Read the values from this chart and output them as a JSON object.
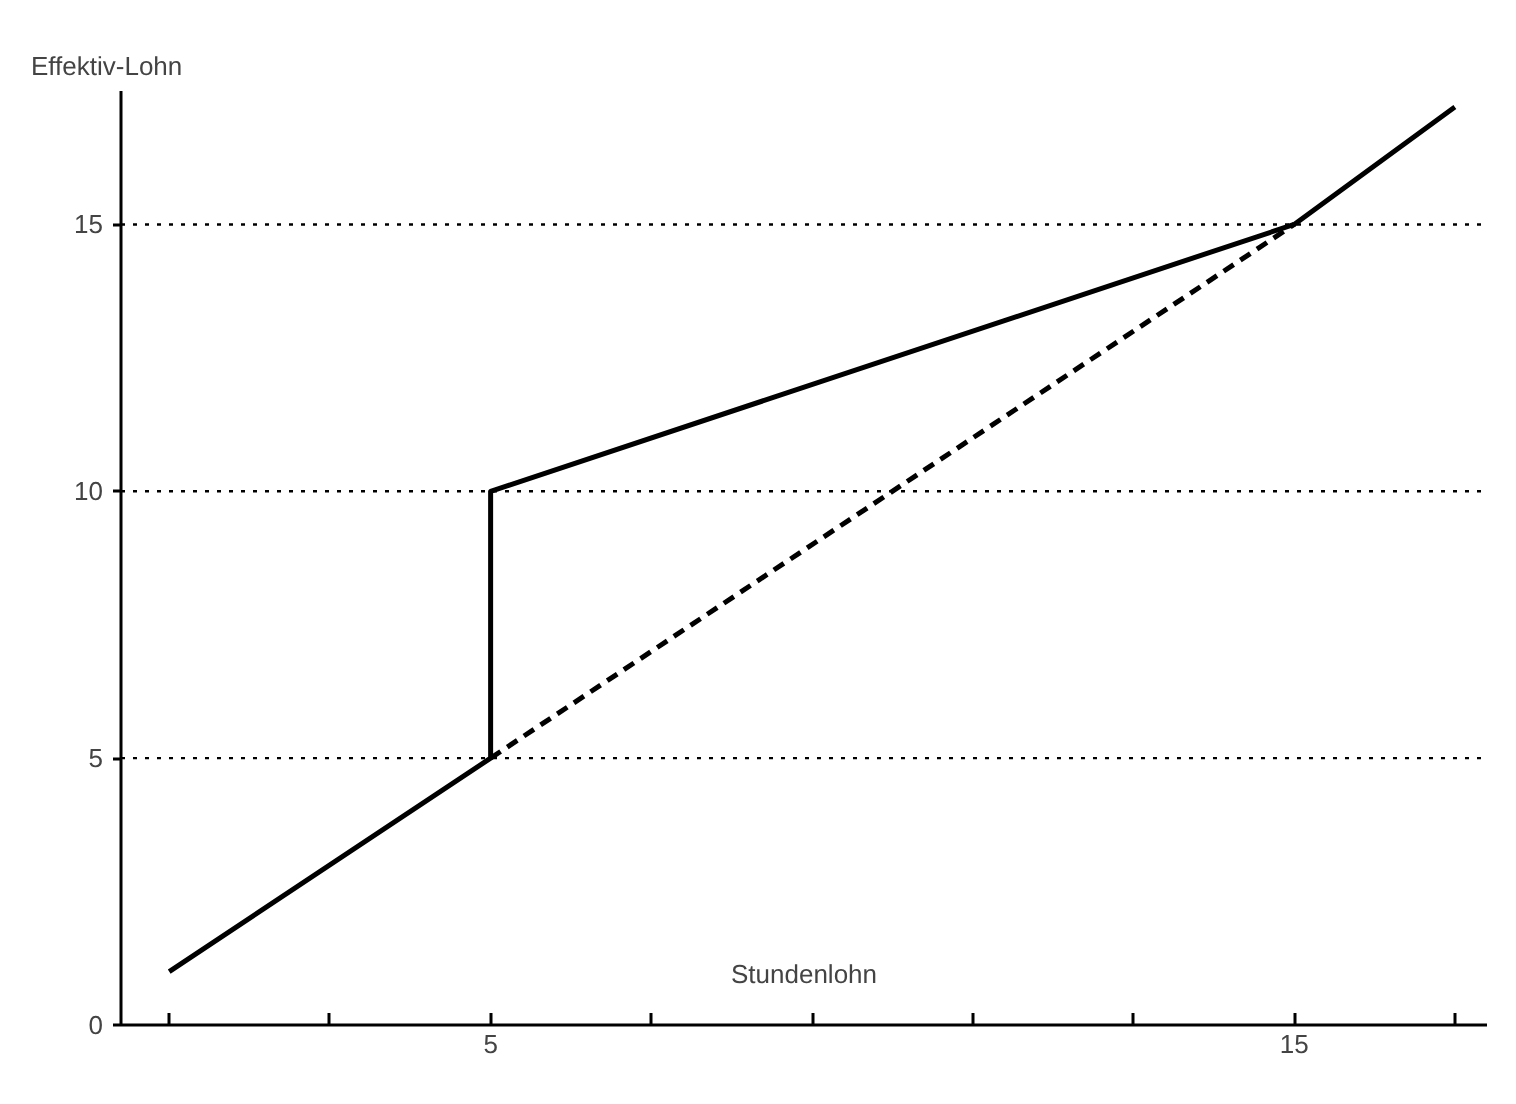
{
  "chart_data": {
    "type": "line",
    "xlabel": "Stundenlohn",
    "ylabel": "Effektiv-Lohn",
    "series": [
      {
        "color": "#000000",
        "x": [
          1,
          5,
          5,
          15,
          17
        ],
        "values": [
          1,
          5,
          10,
          15,
          17.2
        ],
        "line_style": "solid"
      },
      {
        "color": "#000000",
        "x": [
          5,
          15
        ],
        "values": [
          5,
          15
        ],
        "line_style": "dashed"
      }
    ],
    "xlim": [
      0.4,
      17.4
    ],
    "ylim": [
      0,
      17.5
    ],
    "xticks": [
      {
        "value": 1,
        "label": null
      },
      {
        "value": 3,
        "label": null
      },
      5,
      {
        "value": 7,
        "label": null
      },
      {
        "value": 9,
        "label": null
      },
      {
        "value": 11,
        "label": null
      },
      {
        "value": 13,
        "label": null
      },
      15,
      {
        "value": 17,
        "label": null
      }
    ],
    "yticks": [
      0,
      5,
      10,
      15
    ],
    "ref_lines": [
      {
        "axis": "y",
        "value": 5,
        "line_style": "dotted",
        "color": "#000000"
      },
      {
        "axis": "y",
        "value": 10,
        "line_style": "dotted",
        "color": "#000000"
      },
      {
        "axis": "y",
        "value": 15,
        "line_style": "dotted",
        "color": "#000000"
      }
    ],
    "grid": false,
    "marker": "none"
  }
}
